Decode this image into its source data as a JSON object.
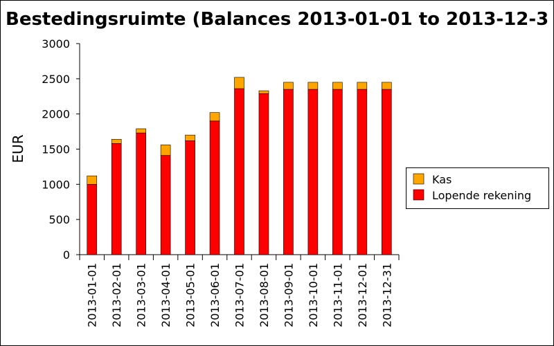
{
  "chart_data": {
    "type": "stacked_bar",
    "title": "Bestedingsruimte (Balances 2013-01-01 to 2013-12-3",
    "y_label": "EUR",
    "categories": [
      "2013-01-01",
      "2013-02-01",
      "2013-03-01",
      "2013-04-01",
      "2013-05-01",
      "2013-06-01",
      "2013-07-01",
      "2013-08-01",
      "2013-09-01",
      "2013-10-01",
      "2013-11-01",
      "2013-12-01",
      "2013-12-31"
    ],
    "series": [
      {
        "name": "Lopende rekening",
        "color": "#ff0000",
        "values": [
          1000,
          1580,
          1730,
          1410,
          1620,
          1900,
          2360,
          2290,
          2350,
          2350,
          2350,
          2350,
          2350
        ]
      },
      {
        "name": "Kas",
        "color": "#ffa500",
        "values": [
          120,
          60,
          60,
          150,
          80,
          120,
          160,
          40,
          100,
          100,
          100,
          100,
          100
        ]
      }
    ],
    "ylim": [
      0,
      3000
    ],
    "yticks": [
      0,
      500,
      1000,
      1500,
      2000,
      2500,
      3000
    ],
    "legend": "right"
  }
}
